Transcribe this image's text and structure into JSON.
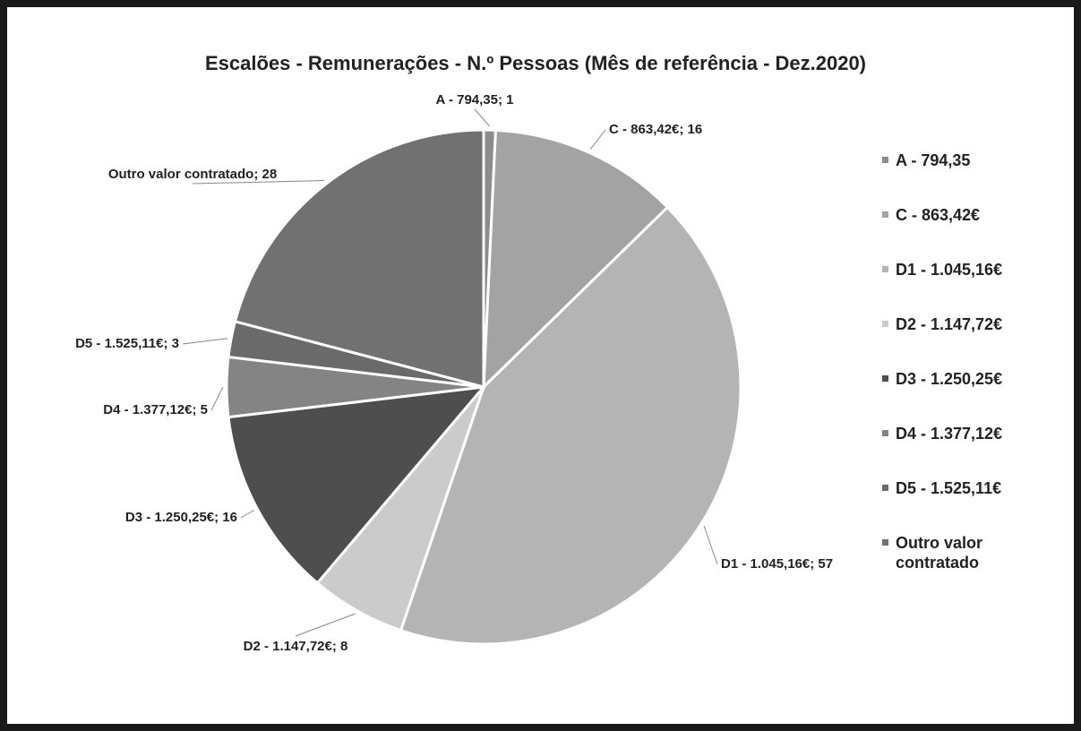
{
  "chart_data": {
    "type": "pie",
    "title": "Escalões - Remunerações - N.º Pessoas (Mês de referência - Dez.2020)",
    "categories": [
      "A - 794,35",
      "C - 863,42€",
      "D1 - 1.045,16€",
      "D2 - 1.147,72€",
      "D3 - 1.250,25€",
      "D4 - 1.377,12€",
      "D5 - 1.525,11€",
      "Outro valor contratado"
    ],
    "values": [
      1,
      16,
      57,
      8,
      16,
      5,
      3,
      28
    ],
    "value_labels": [
      "A - 794,35; 1",
      "C - 863,42€; 16",
      "D1 - 1.045,16€; 57",
      "D2 - 1.147,72€; 8",
      "D3 - 1.250,25€; 16",
      "D4 - 1.377,12€; 5",
      "D5 - 1.525,11€; 3",
      "Outro valor contratado; 28"
    ],
    "colors": [
      "#8c8c8c",
      "#a3a3a3",
      "#b4b4b4",
      "#cbcbcb",
      "#4e4e4e",
      "#848484",
      "#6a6a6a",
      "#717171"
    ],
    "legend": "right"
  }
}
